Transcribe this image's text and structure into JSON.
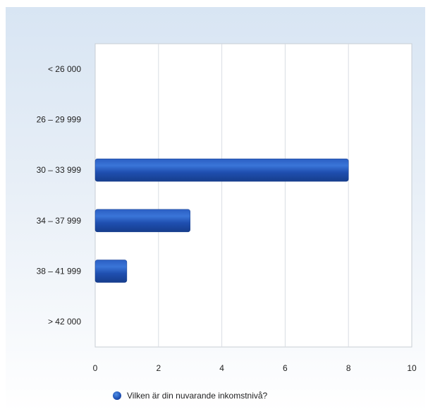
{
  "chart_data": {
    "type": "bar",
    "orientation": "horizontal",
    "categories": [
      "< 26 000",
      "26 – 29 999",
      "30 – 33 999",
      "34 – 37 999",
      "38 – 41 999",
      "> 42 000"
    ],
    "series": [
      {
        "name": "Vilken är din nuvarande inkomstnivå?",
        "values": [
          0,
          0,
          8,
          3,
          1,
          0
        ]
      }
    ],
    "xlim": [
      0,
      10
    ],
    "x_ticks": [
      0,
      2,
      4,
      6,
      8,
      10
    ],
    "grid": true,
    "legend_position": "bottom",
    "colors": {
      "bar": "#1f4fb0",
      "bar_highlight": "#4a84e0",
      "grid": "#d9dde3",
      "axis": "#b9c0c8"
    }
  }
}
